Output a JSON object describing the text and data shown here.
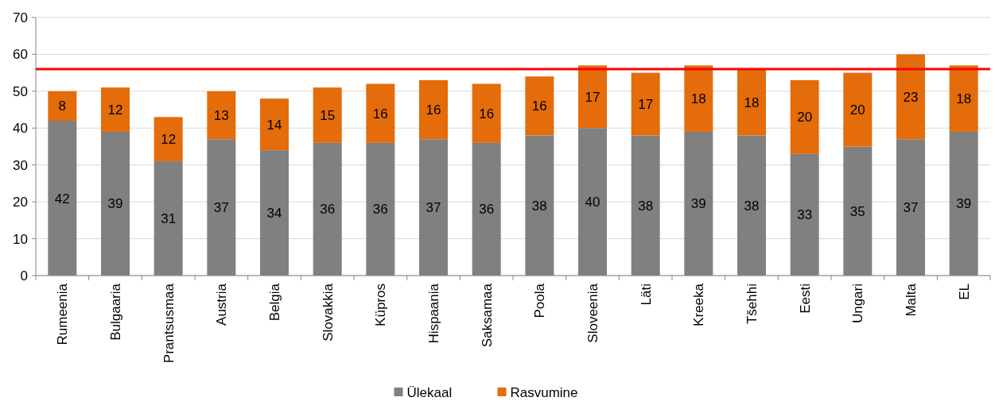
{
  "chart_data": {
    "type": "bar",
    "stacked": true,
    "data_labels": true,
    "grid": "y",
    "legend": "bottom",
    "categories": [
      "Rumeenia",
      "Bulgaaria",
      "Prantsusmaa",
      "Austria",
      "Belgia",
      "Slovakkia",
      "Küpros",
      "Hispaania",
      "Saksamaa",
      "Poola",
      "Sloveenia",
      "Läti",
      "Kreeka",
      "Tšehhi",
      "Eesti",
      "Ungari",
      "Malta",
      "EL"
    ],
    "series": [
      {
        "name": "Ülekaal",
        "color": "#808080",
        "values": [
          42,
          39,
          31,
          37,
          34,
          36,
          36,
          37,
          36,
          38,
          40,
          38,
          39,
          38,
          33,
          35,
          37,
          39
        ]
      },
      {
        "name": "Rasvumine",
        "color": "#e46c0a",
        "values": [
          8,
          12,
          12,
          13,
          14,
          15,
          16,
          16,
          16,
          16,
          17,
          17,
          18,
          18,
          20,
          20,
          23,
          18
        ]
      }
    ],
    "ylim": [
      0,
      70
    ],
    "yticks": [
      0,
      10,
      20,
      30,
      40,
      50,
      60,
      70
    ],
    "ref_lines": [
      {
        "axis": "y",
        "value": 56,
        "color": "#ff0000"
      }
    ]
  }
}
